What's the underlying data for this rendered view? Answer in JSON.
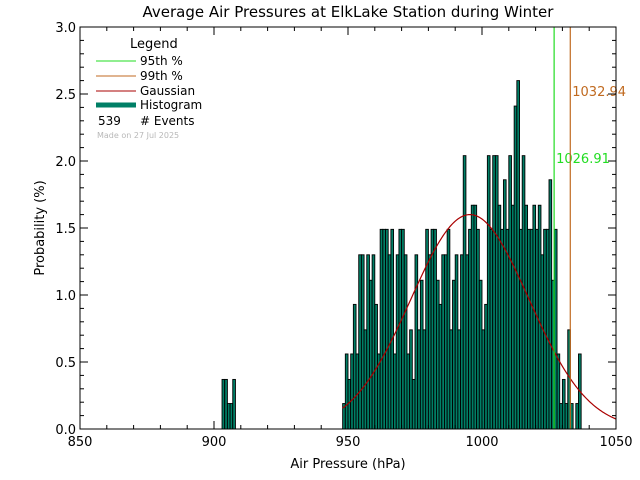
{
  "chart_data": {
    "type": "bar",
    "title": "Average Air Pressures at ElkLake Station during Winter",
    "xlabel": "Air Pressure (hPa)",
    "ylabel": "Probability (%)",
    "xlim": [
      850,
      1050
    ],
    "ylim": [
      0,
      3.0
    ],
    "xticks": [
      "850",
      "900",
      "950",
      "1000",
      "1050"
    ],
    "yticks": [
      "0.0",
      "0.5",
      "1.0",
      "1.5",
      "2.0",
      "2.5",
      "3.0"
    ],
    "bin_width": 1,
    "histogram": {
      "name": "Histogram",
      "x": [
        903,
        904,
        905,
        906,
        907,
        908,
        948,
        949,
        950,
        951,
        952,
        953,
        954,
        955,
        956,
        957,
        958,
        959,
        960,
        961,
        962,
        963,
        964,
        965,
        966,
        967,
        968,
        969,
        970,
        971,
        972,
        973,
        974,
        975,
        976,
        977,
        978,
        979,
        980,
        981,
        982,
        983,
        984,
        985,
        986,
        987,
        988,
        989,
        990,
        991,
        992,
        993,
        994,
        995,
        996,
        997,
        998,
        999,
        1000,
        1001,
        1002,
        1003,
        1004,
        1005,
        1006,
        1007,
        1008,
        1009,
        1010,
        1011,
        1012,
        1013,
        1014,
        1015,
        1016,
        1017,
        1018,
        1019,
        1020,
        1021,
        1022,
        1023,
        1024,
        1025,
        1026,
        1027,
        1028,
        1029,
        1030,
        1031,
        1032,
        1033,
        1034,
        1035,
        1036
      ],
      "values": [
        0.37,
        0.37,
        0.19,
        0.19,
        0.37,
        0.0,
        0.19,
        0.56,
        0.37,
        0.56,
        0.93,
        0.56,
        1.3,
        1.3,
        0.74,
        1.3,
        1.11,
        1.3,
        0.93,
        0.56,
        1.49,
        1.49,
        1.49,
        1.3,
        1.49,
        0.56,
        1.3,
        1.49,
        1.49,
        1.3,
        0.56,
        0.74,
        0.37,
        1.3,
        0.74,
        1.11,
        0.74,
        1.49,
        1.3,
        1.49,
        1.49,
        1.11,
        0.93,
        1.3,
        1.3,
        1.49,
        0.74,
        1.11,
        1.3,
        0.74,
        1.3,
        2.04,
        1.3,
        1.49,
        1.67,
        1.67,
        1.49,
        1.11,
        0.74,
        0.93,
        2.04,
        1.49,
        2.04,
        2.04,
        1.67,
        1.49,
        1.86,
        1.49,
        2.04,
        1.67,
        2.41,
        2.6,
        1.49,
        2.04,
        1.67,
        1.49,
        1.49,
        1.67,
        1.49,
        1.67,
        1.3,
        1.49,
        1.49,
        1.86,
        1.11,
        1.49,
        0.56,
        0.19,
        0.37,
        0.19,
        0.74,
        0.19,
        0.0,
        0.19,
        0.56
      ]
    },
    "gaussian": {
      "name": "Gaussian",
      "mean": 995.5,
      "sigma": 22.0,
      "peak": 1.6
    },
    "lines": [
      {
        "name": "95th %",
        "x": 1026.91,
        "label": "1026.91",
        "color": "#22dd22"
      },
      {
        "name": "99th %",
        "x": 1032.94,
        "label": "1032.94",
        "color": "#c06a20"
      }
    ],
    "legend": {
      "title": "Legend",
      "position": "top-left",
      "entries": [
        "95th %",
        "99th %",
        "Gaussian",
        "Histogram"
      ],
      "events_count": "539",
      "events_label": "# Events",
      "made_on": "Made on 27 Jul 2025"
    },
    "colors": {
      "histogram_fill": "#007f66",
      "histogram_edge": "#000000",
      "gaussian": "#aa0000",
      "p95": "#22dd22",
      "p99": "#c06a20"
    }
  }
}
